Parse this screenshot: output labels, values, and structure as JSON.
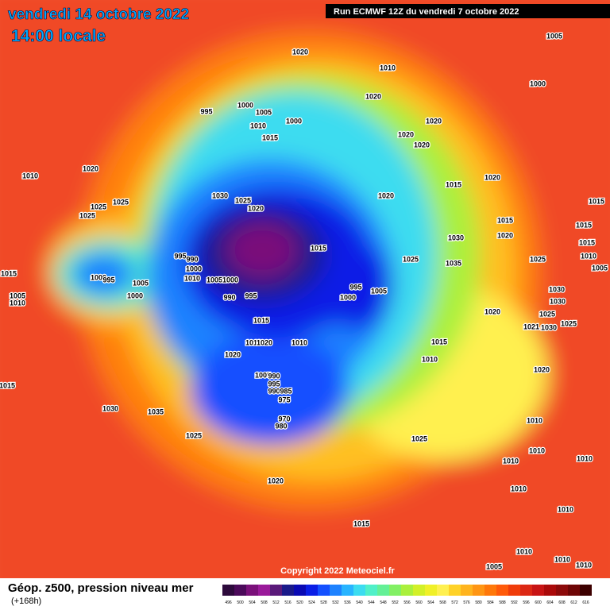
{
  "header": {
    "title": "vendredi 14 octobre 2022",
    "subtitle": "14:00 locale",
    "run": "Run ECMWF 12Z du vendredi 7 octobre 2022"
  },
  "isobar_labels": [
    "1005",
    "1020",
    "1010",
    "1000",
    "1020",
    "995",
    "1000",
    "1005",
    "1000",
    "1010",
    "1020",
    "1015",
    "1020",
    "1020",
    "1010",
    "1020",
    "1020",
    "1015",
    "1030",
    "1025",
    "1020",
    "1020",
    "1015",
    "1025",
    "1025",
    "1025",
    "1015",
    "1030",
    "1020",
    "1015",
    "1015",
    "1015",
    "1025",
    "1035",
    "1025",
    "1010",
    "995",
    "990",
    "1000",
    "1010",
    "1005",
    "1000",
    "1005",
    "1015",
    "1000",
    "995",
    "1005",
    "995",
    "1000",
    "1000",
    "1005",
    "990",
    "995",
    "1030",
    "1005",
    "1010",
    "1030",
    "1020",
    "1025",
    "1015",
    "1025",
    "1021",
    "1030",
    "1010",
    "1020",
    "1010",
    "1015",
    "1020",
    "1010",
    "1020",
    "1005",
    "1015",
    "990",
    "995",
    "990",
    "985",
    "975",
    "1030",
    "1035",
    "970",
    "980",
    "1010",
    "1025",
    "1025",
    "1010",
    "1010",
    "1020",
    "1010",
    "1010",
    "1010",
    "1015",
    "1010",
    "1010",
    "1010",
    "1005"
  ],
  "footer": {
    "copyright": "Copyright 2022 Meteociel.fr",
    "caption": "Géop. z500, pression niveau mer",
    "lead": "(+168h)"
  },
  "legend": {
    "values": [
      496,
      500,
      504,
      508,
      512,
      516,
      520,
      524,
      528,
      532,
      536,
      540,
      544,
      548,
      552,
      556,
      560,
      564,
      568,
      572,
      576,
      580,
      584,
      588,
      592,
      596,
      600,
      604,
      608,
      612,
      616
    ],
    "colors": [
      "#2d0a3c",
      "#4b0a5a",
      "#7a107a",
      "#9a1a9a",
      "#5a1a7a",
      "#1a1a8a",
      "#0a0ab4",
      "#0a1ee6",
      "#1450ff",
      "#1e82ff",
      "#28b4ff",
      "#3cdcf0",
      "#50f0c8",
      "#64f096",
      "#82f064",
      "#aaf03c",
      "#d2f028",
      "#f0f028",
      "#fff050",
      "#ffd228",
      "#ffb41e",
      "#ff9614",
      "#ff780a",
      "#ff5a0a",
      "#f03c0a",
      "#dc2814",
      "#c81414",
      "#aa0a0a",
      "#8c0a0a",
      "#6e0505",
      "#3c0000"
    ]
  }
}
